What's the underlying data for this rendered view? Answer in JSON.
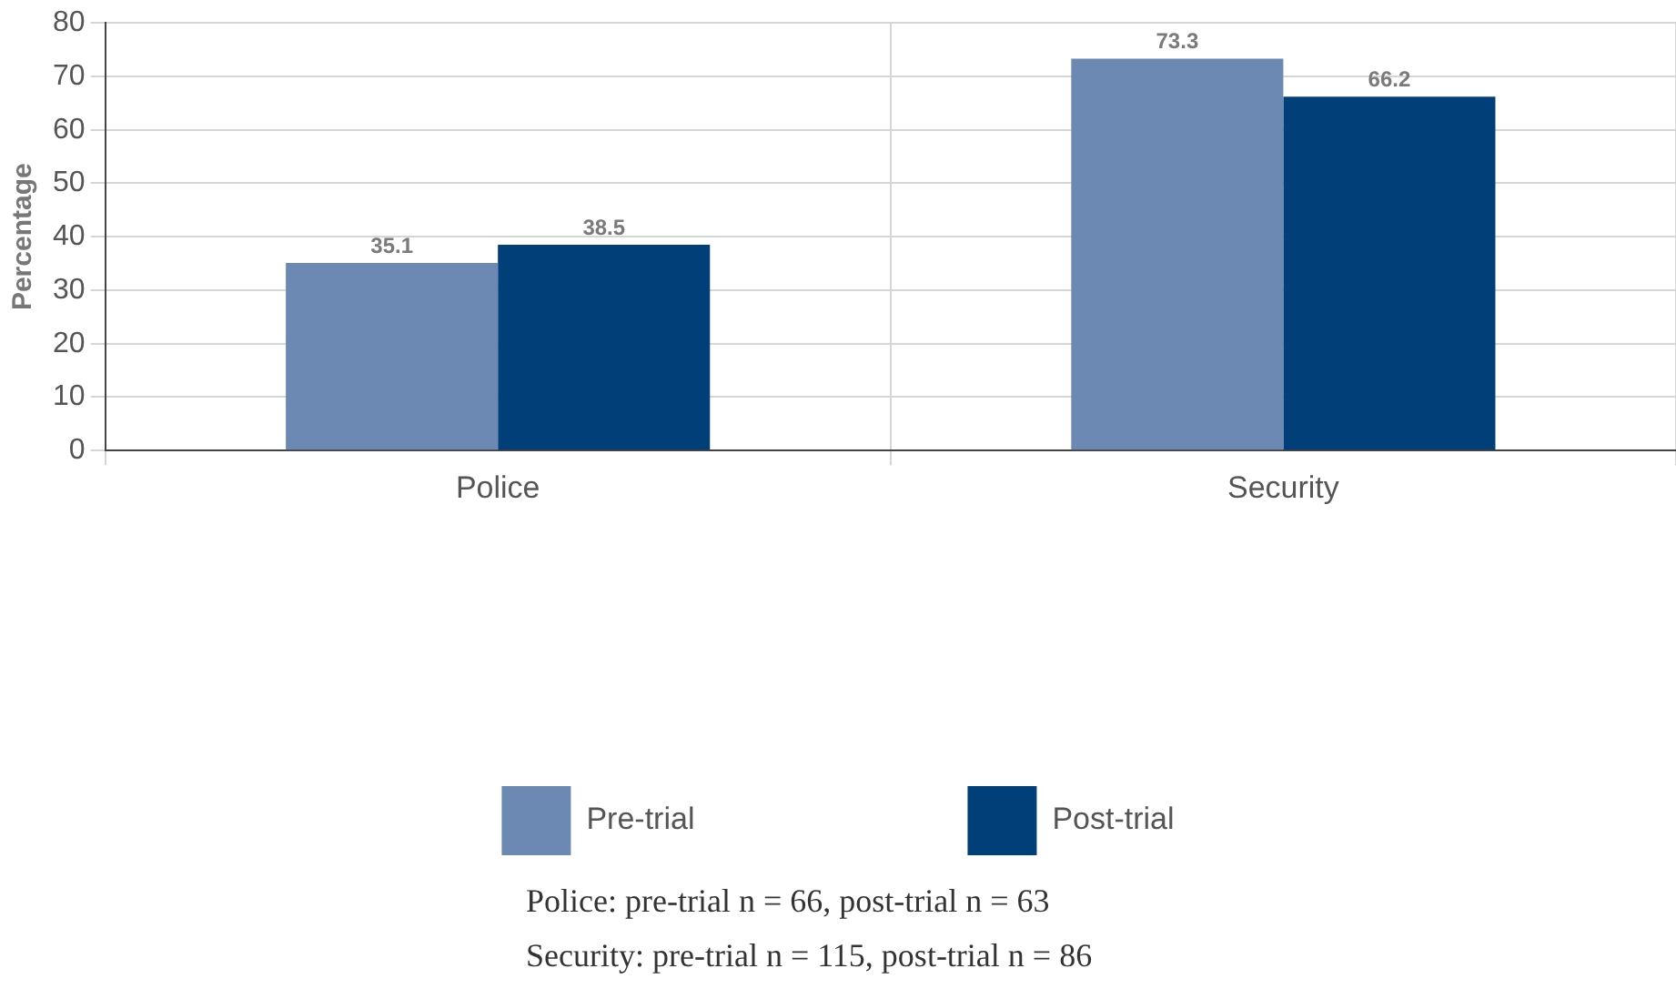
{
  "chart_data": {
    "type": "bar",
    "ylabel": "Percentage",
    "categories": [
      "Police",
      "Security"
    ],
    "series": [
      {
        "name": "Pre-trial",
        "color": "#6b89b2",
        "values": [
          35.1,
          73.3
        ]
      },
      {
        "name": "Post-trial",
        "color": "#003f78",
        "values": [
          38.5,
          66.2
        ]
      }
    ],
    "ylim": [
      0,
      80
    ],
    "yticks": [
      0,
      10,
      20,
      30,
      40,
      50,
      60,
      70,
      80
    ],
    "grid": true,
    "legend": "bottom",
    "data_labels": true,
    "annotations": [
      "Police: pre-trial n = 66, post-trial n = 63",
      "Security: pre-trial n = 115, post-trial n = 86"
    ]
  }
}
